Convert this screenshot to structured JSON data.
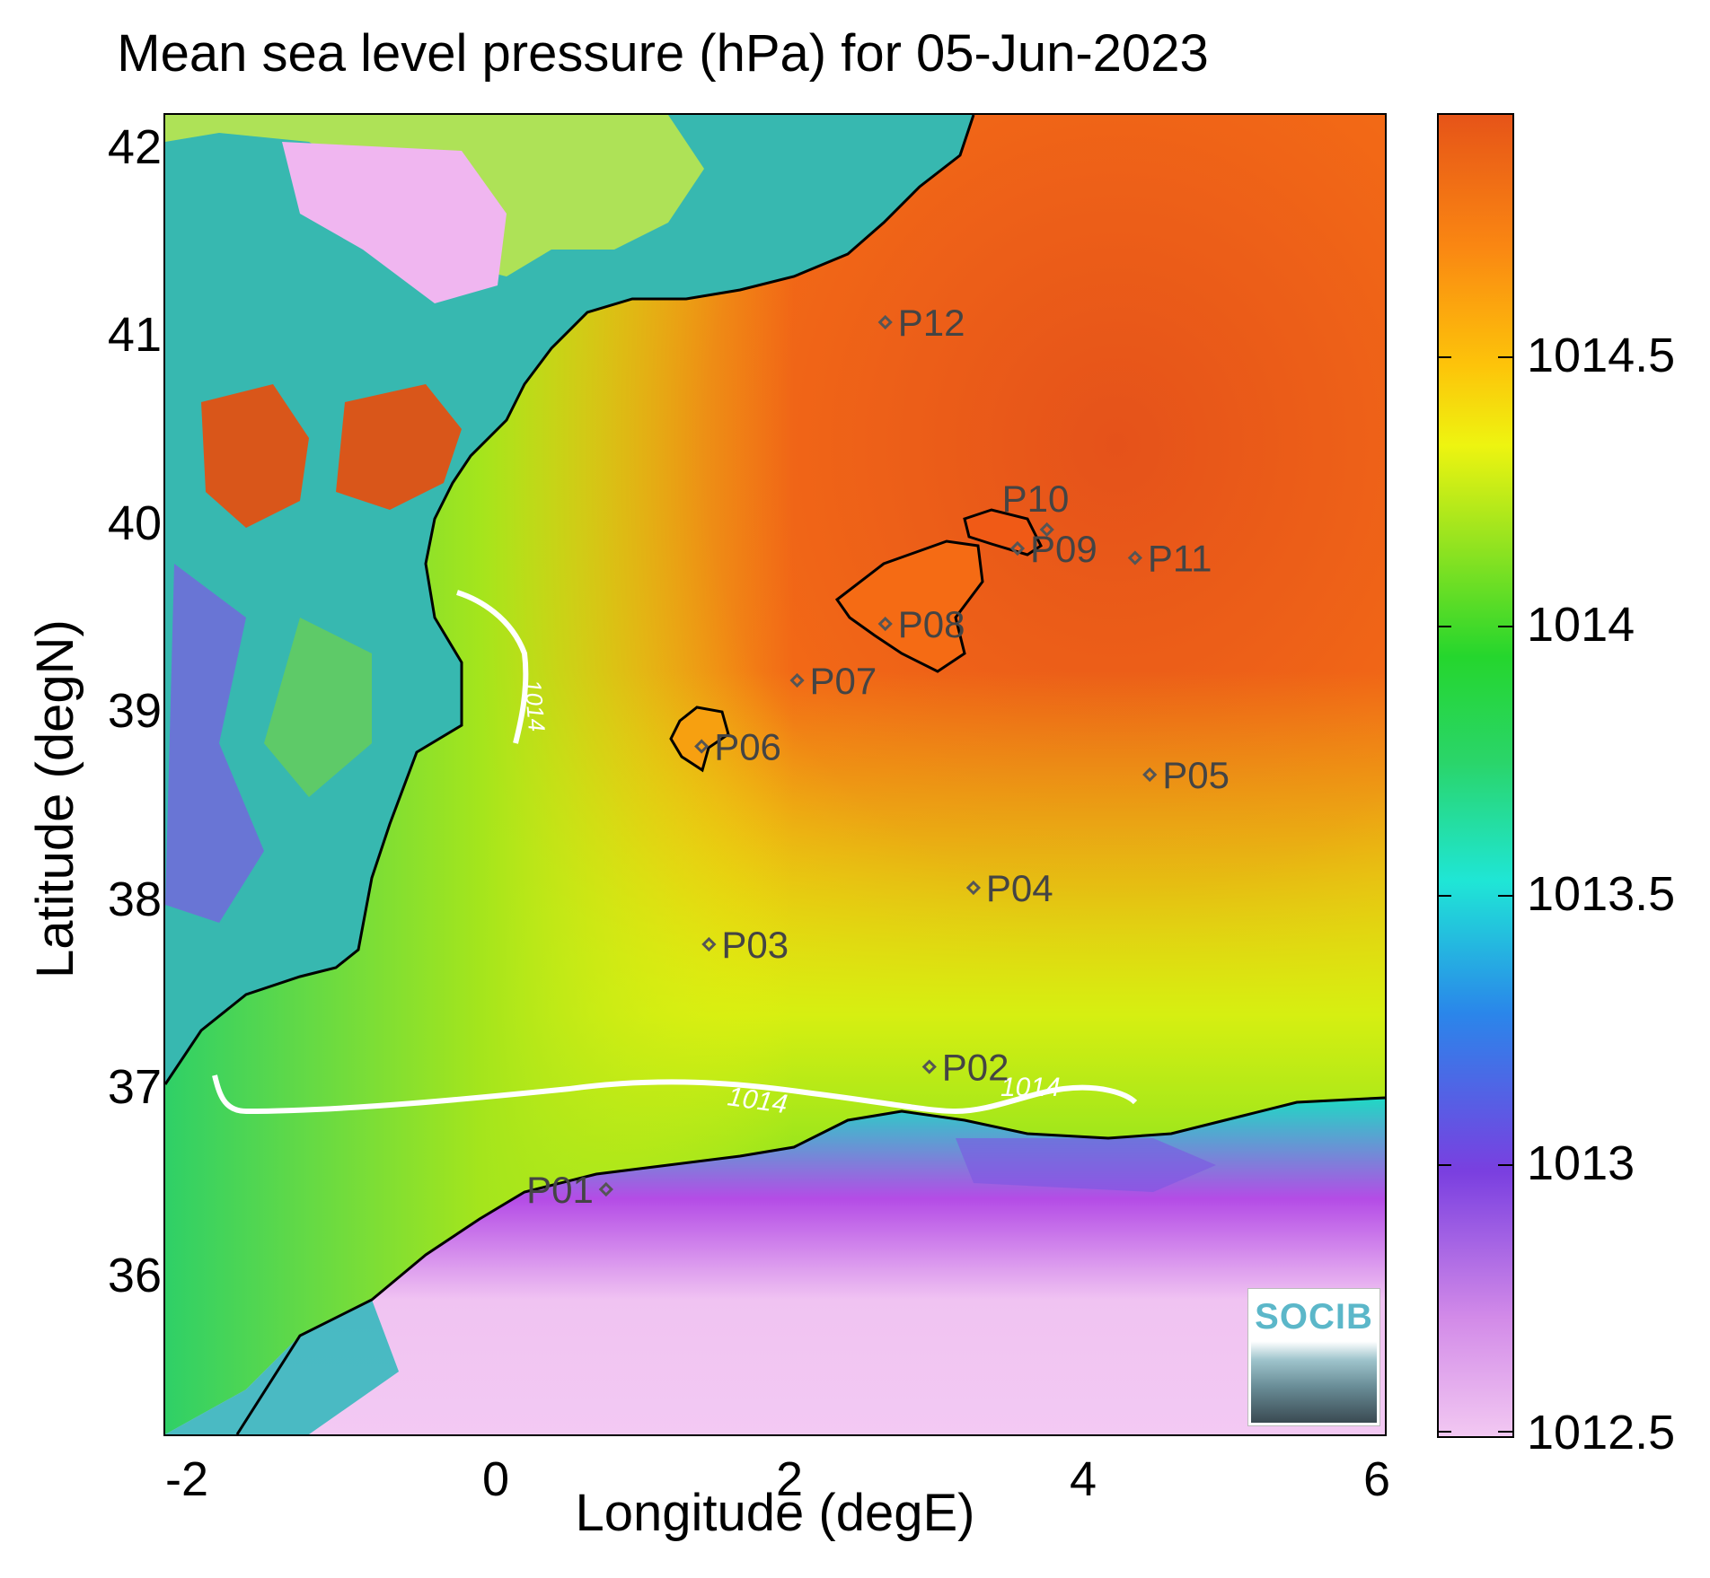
{
  "title": "Mean sea level pressure (hPa) for 05-Jun-2023",
  "xlabel": "Longitude (degE)",
  "ylabel": "Latitude (degN)",
  "xticks": [
    "-2",
    "0",
    "2",
    "4",
    "6"
  ],
  "yticks": [
    "42",
    "41",
    "40",
    "39",
    "38",
    "37",
    "36"
  ],
  "colorbar": {
    "ticks": [
      "1014.5",
      "1014",
      "1013.5",
      "1013",
      "1012.5"
    ],
    "range": [
      1012.5,
      1014.85
    ]
  },
  "contour_label": "1014",
  "logo_text": "SOCIB",
  "chart_data": {
    "type": "heatmap",
    "title": "Mean sea level pressure (hPa) for 05-Jun-2023",
    "xlabel": "Longitude (degE)",
    "ylabel": "Latitude (degN)",
    "xlim": [
      -2.2,
      6.1
    ],
    "ylim": [
      35.2,
      42.2
    ],
    "colorbar_label_values": [
      1012.5,
      1013,
      1013.5,
      1014,
      1014.5
    ],
    "contours": [
      {
        "level": 1014,
        "label": "1014"
      }
    ],
    "stations": [
      {
        "name": "P01",
        "lon": 0.8,
        "lat": 36.5
      },
      {
        "name": "P02",
        "lon": 3.0,
        "lat": 37.15
      },
      {
        "name": "P03",
        "lon": 1.5,
        "lat": 37.8
      },
      {
        "name": "P04",
        "lon": 3.3,
        "lat": 38.1
      },
      {
        "name": "P05",
        "lon": 4.5,
        "lat": 38.7
      },
      {
        "name": "P06",
        "lon": 1.45,
        "lat": 38.85
      },
      {
        "name": "P07",
        "lon": 2.1,
        "lat": 39.2
      },
      {
        "name": "P08",
        "lon": 2.7,
        "lat": 39.5
      },
      {
        "name": "P09",
        "lon": 3.6,
        "lat": 39.9
      },
      {
        "name": "P10",
        "lon": 3.8,
        "lat": 40.0
      },
      {
        "name": "P11",
        "lon": 4.4,
        "lat": 39.85
      },
      {
        "name": "P12",
        "lon": 2.7,
        "lat": 41.1
      }
    ]
  }
}
